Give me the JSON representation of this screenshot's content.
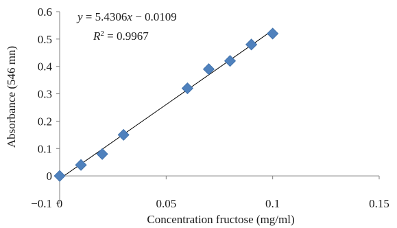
{
  "chart_data": {
    "type": "scatter",
    "xlabel": "Concentration fructose (mg/ml)",
    "ylabel": "Absorbance (546 mn)",
    "xlim": [
      0,
      0.15
    ],
    "ylim": [
      -0.1,
      0.6
    ],
    "x_ticks": [
      0,
      0.05,
      0.1,
      0.15
    ],
    "x_tick_labels": [
      "0",
      "0.05",
      "0.1",
      "0.15"
    ],
    "y_ticks": [
      -0.1,
      0,
      0.1,
      0.2,
      0.3,
      0.4,
      0.5,
      0.6
    ],
    "y_tick_labels": [
      "−0.1",
      "0",
      "0.1",
      "0.2",
      "0.3",
      "0.4",
      "0.5",
      "0.6"
    ],
    "grid": false,
    "legend": "none",
    "series": [
      {
        "marker": "diamond",
        "color": "#4f81bd",
        "x": [
          0,
          0.01,
          0.02,
          0.03,
          0.06,
          0.07,
          0.08,
          0.09,
          0.1
        ],
        "y": [
          0,
          0.04,
          0.08,
          0.15,
          0.32,
          0.39,
          0.42,
          0.48,
          0.52
        ]
      }
    ],
    "trendline": {
      "slope": 5.4306,
      "intercept": -0.0109,
      "x_range": [
        0,
        0.1
      ],
      "color": "#000000"
    },
    "annotations": {
      "equation_prefix": "y",
      "equation_middle": " = 5.4306",
      "equation_var": "x",
      "equation_suffix": " − 0.0109",
      "r2_base": "R",
      "r2_exp": "2",
      "r2_value": " = 0.9967"
    }
  }
}
